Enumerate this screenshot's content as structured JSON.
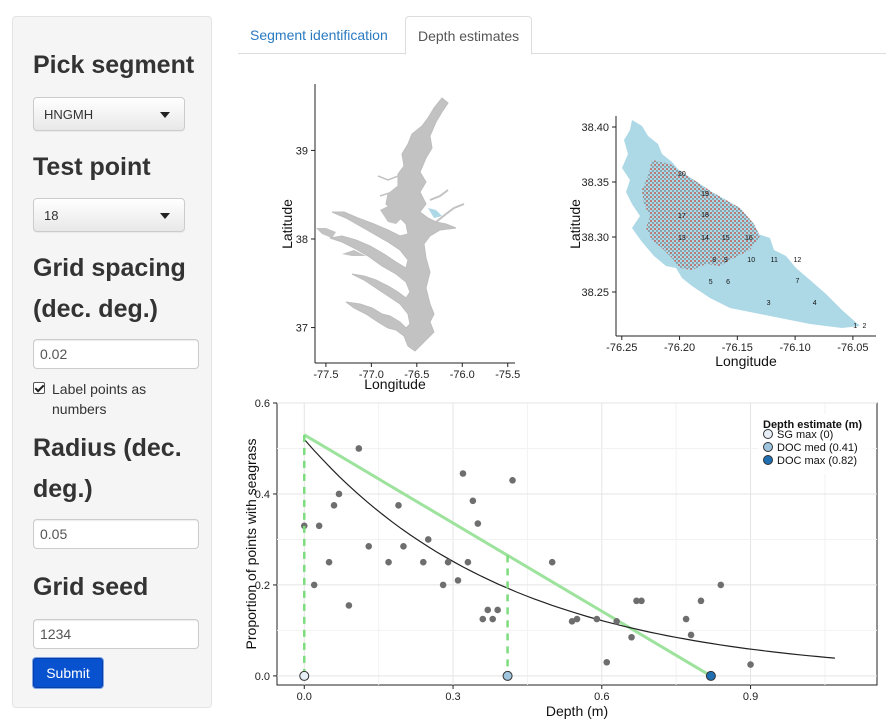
{
  "sidebar": {
    "segment_heading": "Pick segment",
    "segment_value": "HNGMH",
    "test_point_heading": "Test point",
    "test_point_value": "18",
    "grid_spacing_heading_line1": "Grid spacing",
    "grid_spacing_heading_line2": "(dec. deg.)",
    "grid_spacing_value": "0.02",
    "label_points_label": "Label points as numbers",
    "label_points_checked": true,
    "radius_heading_line1": "Radius (dec.",
    "radius_heading_line2": "deg.)",
    "radius_value": "0.05",
    "grid_seed_heading": "Grid seed",
    "grid_seed_value": "1234",
    "submit_label": "Submit"
  },
  "tabs": [
    {
      "label": "Segment identification",
      "active": false
    },
    {
      "label": "Depth estimates",
      "active": true
    }
  ],
  "colors": {
    "accent": "#0852cf",
    "link": "#2a7ac0",
    "land": "#c2c2c2",
    "water": "#add8e6"
  },
  "chart_data": [
    {
      "type": "map",
      "xlabel": "Longitude",
      "ylabel": "Latitude",
      "xticks": [
        -77.5,
        -77.0,
        -76.5,
        -76.0,
        -75.5
      ],
      "yticks": [
        37,
        38,
        39
      ],
      "xtick_labels": [
        "-77.5",
        "-77.0",
        "-76.5",
        "-76.0",
        "-75.5"
      ],
      "ytick_labels": [
        "37",
        "38",
        "39"
      ],
      "xlim": [
        -77.62,
        -75.42
      ],
      "ylim": [
        36.6,
        39.75
      ]
    },
    {
      "type": "map",
      "xlabel": "Longitude",
      "ylabel": "Latitude",
      "xticks": [
        -76.25,
        -76.2,
        -76.15,
        -76.1,
        -76.05
      ],
      "yticks": [
        38.25,
        38.3,
        38.35,
        38.4
      ],
      "xtick_labels": [
        "-76.25",
        "-76.20",
        "-76.15",
        "-76.10",
        "-76.05"
      ],
      "ytick_labels": [
        "38.25",
        "38.30",
        "38.35",
        "38.40"
      ],
      "xlim": [
        -76.255,
        -76.03
      ],
      "ylim": [
        38.21,
        38.41
      ],
      "point_labels": [
        {
          "label": "1",
          "x": -76.048,
          "y": 38.22
        },
        {
          "label": "2",
          "x": -76.04,
          "y": 38.22
        },
        {
          "label": "3",
          "x": -76.123,
          "y": 38.241
        },
        {
          "label": "4",
          "x": -76.083,
          "y": 38.241
        },
        {
          "label": "5",
          "x": -76.173,
          "y": 38.26
        },
        {
          "label": "6",
          "x": -76.158,
          "y": 38.26
        },
        {
          "label": "7",
          "x": -76.098,
          "y": 38.261
        },
        {
          "label": "8",
          "x": -76.17,
          "y": 38.28
        },
        {
          "label": "9",
          "x": -76.16,
          "y": 38.28
        },
        {
          "label": "10",
          "x": -76.138,
          "y": 38.28
        },
        {
          "label": "11",
          "x": -76.118,
          "y": 38.28
        },
        {
          "label": "12",
          "x": -76.098,
          "y": 38.28
        },
        {
          "label": "13",
          "x": -76.198,
          "y": 38.3
        },
        {
          "label": "14",
          "x": -76.178,
          "y": 38.3
        },
        {
          "label": "15",
          "x": -76.16,
          "y": 38.3
        },
        {
          "label": "16",
          "x": -76.14,
          "y": 38.3
        },
        {
          "label": "17",
          "x": -76.198,
          "y": 38.32
        },
        {
          "label": "18",
          "x": -76.178,
          "y": 38.321
        },
        {
          "label": "19",
          "x": -76.178,
          "y": 38.34
        },
        {
          "label": "20",
          "x": -76.198,
          "y": 38.358
        }
      ]
    },
    {
      "type": "scatter",
      "xlabel": "Depth (m)",
      "ylabel": "Proportion of points with seagrass",
      "xlim": [
        -0.055,
        1.155
      ],
      "ylim": [
        -0.02,
        0.6
      ],
      "xticks": [
        0.0,
        0.3,
        0.6,
        0.9
      ],
      "yticks": [
        0.0,
        0.2,
        0.4,
        0.6
      ],
      "xtick_labels": [
        "0.0",
        "0.3",
        "0.6",
        "0.9"
      ],
      "ytick_labels": [
        "0.0",
        "0.2",
        "0.4",
        "0.6"
      ],
      "grid": true,
      "points": [
        [
          0.0,
          0.33
        ],
        [
          0.02,
          0.2
        ],
        [
          0.03,
          0.33
        ],
        [
          0.05,
          0.25
        ],
        [
          0.06,
          0.375
        ],
        [
          0.07,
          0.4
        ],
        [
          0.09,
          0.155
        ],
        [
          0.11,
          0.5
        ],
        [
          0.13,
          0.285
        ],
        [
          0.17,
          0.25
        ],
        [
          0.19,
          0.375
        ],
        [
          0.2,
          0.285
        ],
        [
          0.24,
          0.25
        ],
        [
          0.25,
          0.3
        ],
        [
          0.28,
          0.2
        ],
        [
          0.29,
          0.25
        ],
        [
          0.31,
          0.21
        ],
        [
          0.32,
          0.445
        ],
        [
          0.33,
          0.25
        ],
        [
          0.34,
          0.385
        ],
        [
          0.35,
          0.335
        ],
        [
          0.36,
          0.125
        ],
        [
          0.37,
          0.145
        ],
        [
          0.38,
          0.125
        ],
        [
          0.39,
          0.145
        ],
        [
          0.42,
          0.43
        ],
        [
          0.5,
          0.25
        ],
        [
          0.54,
          0.12
        ],
        [
          0.55,
          0.125
        ],
        [
          0.59,
          0.125
        ],
        [
          0.61,
          0.03
        ],
        [
          0.63,
          0.12
        ],
        [
          0.66,
          0.085
        ],
        [
          0.67,
          0.165
        ],
        [
          0.68,
          0.165
        ],
        [
          0.77,
          0.125
        ],
        [
          0.78,
          0.09
        ],
        [
          0.8,
          0.165
        ],
        [
          0.84,
          0.2
        ],
        [
          0.9,
          0.025
        ]
      ],
      "decay_curve": {
        "a": 0.52,
        "b": 2.42,
        "x_range": [
          0.0,
          1.07
        ]
      },
      "linear_fit": {
        "x": [
          0.0,
          0.82
        ],
        "y": [
          0.53,
          0.0
        ]
      },
      "depth_markers": [
        {
          "name": "SG max (0)",
          "x": 0.0,
          "fill": "#e6eef6"
        },
        {
          "name": "DOC med (0.41)",
          "x": 0.41,
          "fill": "#9fc4de"
        },
        {
          "name": "DOC max (0.82)",
          "x": 0.82,
          "fill": "#1f6fb2"
        }
      ],
      "legend_title": "Depth estimate (m)",
      "legend_position": "top-right"
    }
  ]
}
